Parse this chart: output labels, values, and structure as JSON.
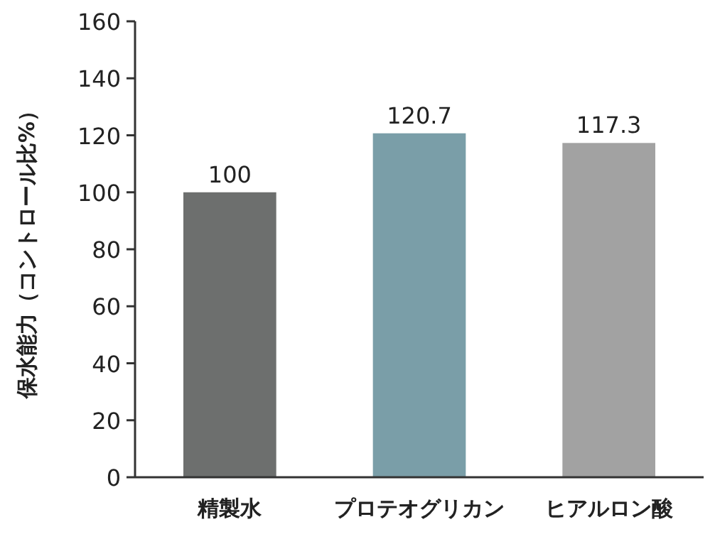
{
  "chart_data": {
    "type": "bar",
    "ylabel": "保水能力（コントロール比%）",
    "categories": [
      "精製水",
      "プロテオグリカン",
      "ヒアルロン酸"
    ],
    "values": [
      100,
      120.7,
      117.3
    ],
    "colors": [
      "#6d6f6e",
      "#7a9ea8",
      "#a2a2a2"
    ],
    "ylim": [
      0,
      160
    ],
    "yticks": [
      0,
      20,
      40,
      60,
      80,
      100,
      120,
      140,
      160
    ],
    "data_labels": true
  }
}
